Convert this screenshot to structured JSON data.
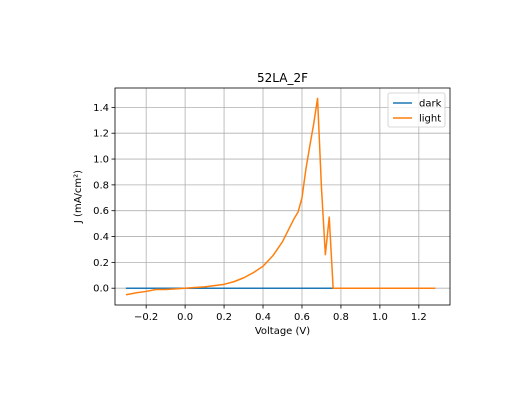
{
  "chart_data": {
    "type": "line",
    "title": "52LA_2F",
    "xlabel": "Voltage (V)",
    "ylabel": "J (mA/cm²)",
    "xlim": [
      -0.36,
      1.36
    ],
    "ylim": [
      -0.13,
      1.55
    ],
    "xticks": [
      -0.2,
      0.0,
      0.2,
      0.4,
      0.6,
      0.8,
      1.0,
      1.2
    ],
    "xtick_labels": [
      "−0.2",
      "0.0",
      "0.2",
      "0.4",
      "0.6",
      "0.8",
      "1.0",
      "1.2"
    ],
    "yticks": [
      0.0,
      0.2,
      0.4,
      0.6,
      0.8,
      1.0,
      1.2,
      1.4
    ],
    "ytick_labels": [
      "0.0",
      "0.2",
      "0.4",
      "0.6",
      "0.8",
      "1.0",
      "1.2",
      "1.4"
    ],
    "grid": true,
    "legend_position": "top-right",
    "series": [
      {
        "name": "dark",
        "color": "#1f77b4",
        "x": [
          -0.3,
          1.28
        ],
        "y": [
          0.0,
          0.0
        ]
      },
      {
        "name": "light",
        "color": "#ff7f0e",
        "x": [
          -0.3,
          -0.25,
          -0.2,
          -0.15,
          -0.1,
          -0.05,
          0.0,
          0.05,
          0.1,
          0.15,
          0.2,
          0.25,
          0.3,
          0.35,
          0.4,
          0.45,
          0.5,
          0.53,
          0.56,
          0.58,
          0.6,
          0.62,
          0.64,
          0.66,
          0.68,
          0.7,
          0.72,
          0.74,
          0.76,
          0.78,
          0.8,
          0.85,
          0.9,
          1.0,
          1.1,
          1.2,
          1.28
        ],
        "y": [
          -0.05,
          -0.035,
          -0.025,
          -0.01,
          -0.01,
          -0.005,
          0.0,
          0.005,
          0.01,
          0.02,
          0.03,
          0.05,
          0.08,
          0.12,
          0.17,
          0.25,
          0.36,
          0.45,
          0.54,
          0.59,
          0.7,
          0.92,
          1.1,
          1.27,
          1.47,
          0.78,
          0.26,
          0.55,
          0.0,
          0.0,
          0.0,
          0.0,
          0.0,
          0.0,
          0.0,
          0.0,
          0.0
        ]
      }
    ]
  }
}
